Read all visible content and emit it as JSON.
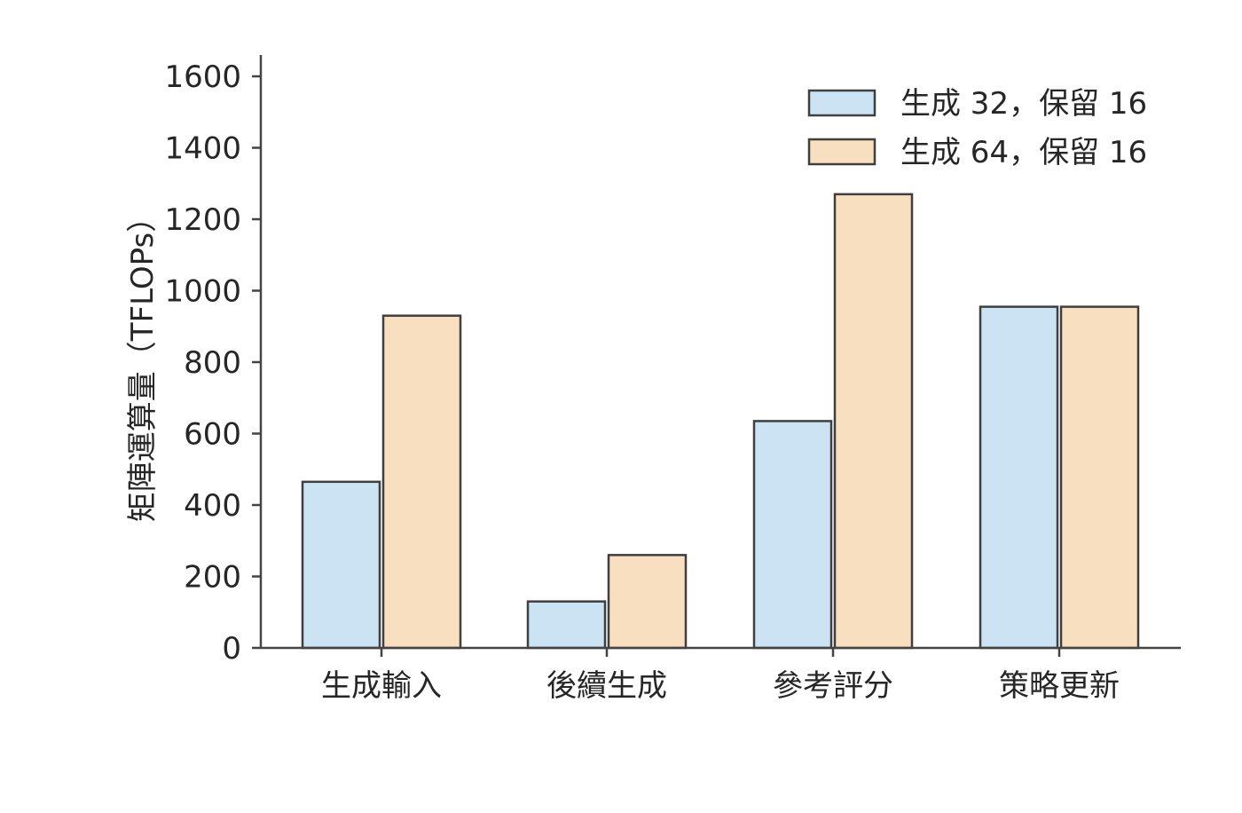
{
  "chart_data": {
    "type": "bar",
    "title": "",
    "xlabel": "",
    "ylabel": "矩陣運算量（TFLOPs）",
    "categories": [
      "生成輸入",
      "後續生成",
      "參考評分",
      "策略更新"
    ],
    "series": [
      {
        "name": "生成 32，保留 16",
        "values": [
          465,
          130,
          635,
          955
        ],
        "color": "#cce3f3"
      },
      {
        "name": "生成 64，保留 16",
        "values": [
          930,
          260,
          1270,
          955
        ],
        "color": "#f8dfc0"
      }
    ],
    "ylim": [
      0,
      1650
    ],
    "yticks": [
      0,
      200,
      400,
      600,
      800,
      1000,
      1200,
      1400,
      1600
    ],
    "grid": false,
    "legend_position": "top-right",
    "colors": {
      "axis": "#444444",
      "bar_edge": "#3f3f3f",
      "text": "#262626"
    }
  }
}
